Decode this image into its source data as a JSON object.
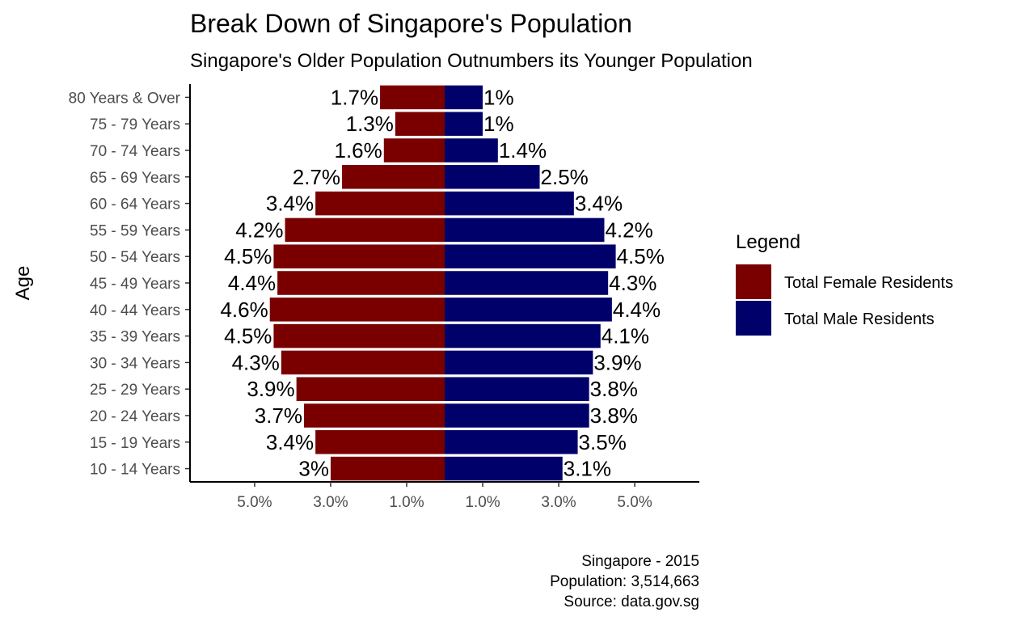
{
  "chart_data": {
    "type": "bar",
    "orientation": "horizontal",
    "title": "Break Down of Singapore's Population",
    "subtitle": "Singapore's Older Population Outnumbers its Younger Population",
    "ylabel": "Age",
    "xlabel": "",
    "categories": [
      "80 Years & Over",
      "75 - 79 Years",
      "70 - 74 Years",
      "65 - 69 Years",
      "60 - 64 Years",
      "55 - 59 Years",
      "50 - 54 Years",
      "45 - 49 Years",
      "40 - 44 Years",
      "35 - 39 Years",
      "30 - 34 Years",
      "25 - 29 Years",
      "20 - 24 Years",
      "15 - 19 Years",
      "10 - 14 Years"
    ],
    "series": [
      {
        "name": "Total Female Residents",
        "color": "#7a0000",
        "values": [
          1.7,
          1.3,
          1.6,
          2.7,
          3.4,
          4.2,
          4.5,
          4.4,
          4.6,
          4.5,
          4.3,
          3.9,
          3.7,
          3.4,
          3.0
        ],
        "labels": [
          "1.7%",
          "1.3%",
          "1.6%",
          "2.7%",
          "3.4%",
          "4.2%",
          "4.5%",
          "4.4%",
          "4.6%",
          "4.5%",
          "4.3%",
          "3.9%",
          "3.7%",
          "3.4%",
          "3%"
        ]
      },
      {
        "name": "Total Male Residents",
        "color": "#00006b",
        "values": [
          1.0,
          1.0,
          1.4,
          2.5,
          3.4,
          4.2,
          4.5,
          4.3,
          4.4,
          4.1,
          3.9,
          3.8,
          3.8,
          3.5,
          3.1
        ],
        "labels": [
          "1%",
          "1%",
          "1.4%",
          "2.5%",
          "3.4%",
          "4.2%",
          "4.5%",
          "4.3%",
          "4.4%",
          "4.1%",
          "3.9%",
          "3.8%",
          "3.8%",
          "3.5%",
          "3.1%"
        ]
      }
    ],
    "xlim": [
      -6.7,
      6.7
    ],
    "xticks": [
      -5,
      -3,
      -1,
      1,
      3,
      5
    ],
    "xtick_labels": [
      "5.0%",
      "3.0%",
      "1.0%",
      "1.0%",
      "3.0%",
      "5.0%"
    ],
    "grid": false,
    "legend": {
      "title": "Legend",
      "position": "right"
    },
    "caption": [
      "Singapore - 2015",
      "Population: 3,514,663",
      "Source: data.gov.sg"
    ]
  }
}
